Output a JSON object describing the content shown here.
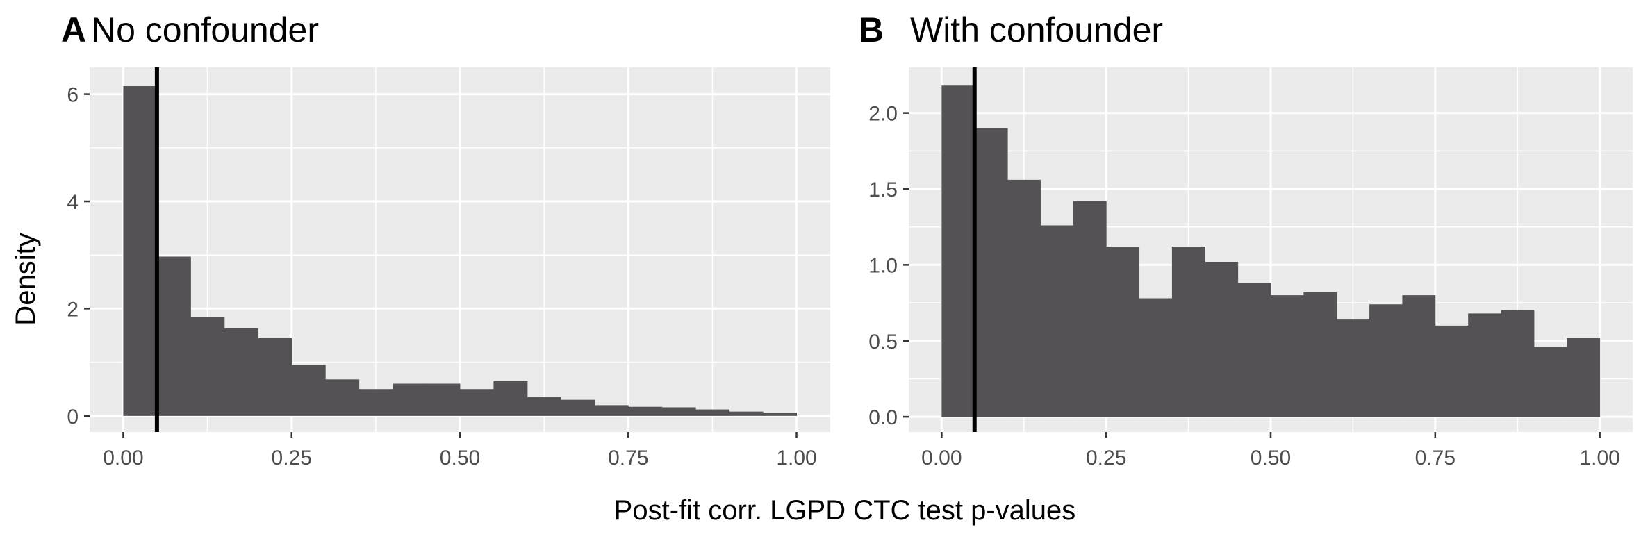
{
  "xlabel": "Post-fit corr. LGPD CTC test p-values",
  "ylabel": "Density",
  "colors": {
    "panel_bg": "#ebebeb",
    "grid_major": "#ffffff",
    "bar_fill": "#545254",
    "threshold_line": "#000000"
  },
  "chart_data": [
    {
      "type": "bar",
      "tag": "A",
      "title": "No confounder",
      "xlim": [
        -0.05,
        1.05
      ],
      "ylim": [
        -0.3,
        6.5
      ],
      "x_ticks": [
        0,
        0.25,
        0.5,
        0.75,
        1.0
      ],
      "x_tick_labels": [
        "0.00",
        "0.25",
        "0.50",
        "0.75",
        "1.00"
      ],
      "y_ticks": [
        0,
        2,
        4,
        6
      ],
      "y_tick_labels": [
        "0",
        "2",
        "4",
        "6"
      ],
      "bin_width": 0.05,
      "bin_starts": [
        0,
        0.05,
        0.1,
        0.15,
        0.2,
        0.25,
        0.3,
        0.35,
        0.4,
        0.45,
        0.5,
        0.55,
        0.6,
        0.65,
        0.7,
        0.75,
        0.8,
        0.85,
        0.9,
        0.95
      ],
      "values": [
        6.15,
        2.97,
        1.85,
        1.63,
        1.45,
        0.95,
        0.68,
        0.5,
        0.6,
        0.6,
        0.5,
        0.65,
        0.35,
        0.3,
        0.2,
        0.17,
        0.16,
        0.12,
        0.08,
        0.06
      ],
      "vline": 0.05,
      "grid": true,
      "legend": "none"
    },
    {
      "type": "bar",
      "tag": "B",
      "title": "With confounder",
      "xlim": [
        -0.05,
        1.05
      ],
      "ylim": [
        -0.1,
        2.3
      ],
      "x_ticks": [
        0,
        0.25,
        0.5,
        0.75,
        1.0
      ],
      "x_tick_labels": [
        "0.00",
        "0.25",
        "0.50",
        "0.75",
        "1.00"
      ],
      "y_ticks": [
        0,
        0.5,
        1.0,
        1.5,
        2.0
      ],
      "y_tick_labels": [
        "0.0",
        "0.5",
        "1.0",
        "1.5",
        "2.0"
      ],
      "bin_width": 0.05,
      "bin_starts": [
        0,
        0.05,
        0.1,
        0.15,
        0.2,
        0.25,
        0.3,
        0.35,
        0.4,
        0.45,
        0.5,
        0.55,
        0.6,
        0.65,
        0.7,
        0.75,
        0.8,
        0.85,
        0.9,
        0.95
      ],
      "values": [
        2.18,
        1.9,
        1.56,
        1.26,
        1.42,
        1.12,
        0.78,
        1.12,
        1.02,
        0.88,
        0.8,
        0.82,
        0.64,
        0.74,
        0.8,
        0.6,
        0.68,
        0.7,
        0.46,
        0.52
      ],
      "vline": 0.05,
      "grid": true,
      "legend": "none"
    }
  ]
}
